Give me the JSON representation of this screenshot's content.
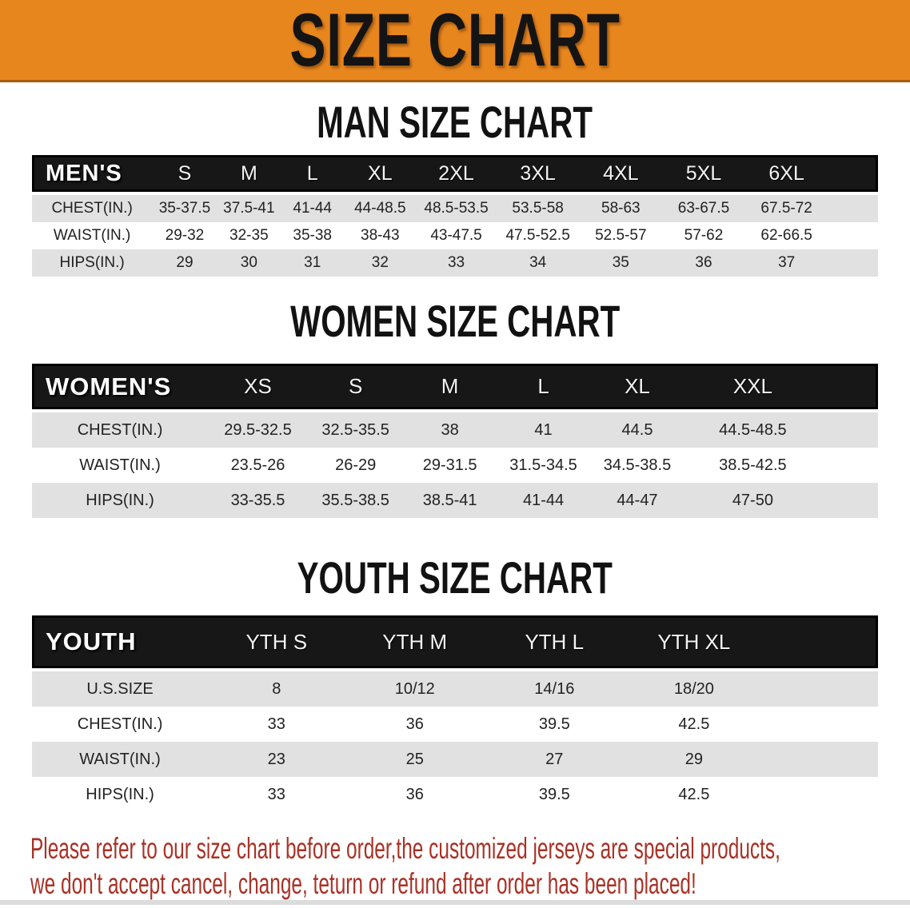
{
  "banner": {
    "title": "SIZE CHART"
  },
  "colors": {
    "banner_bg": "#E8861E",
    "table_header_bg": "#171717",
    "row_stripe": "#E1E1E1",
    "disclaimer_text": "#A93226"
  },
  "sections": [
    {
      "heading": "MAN SIZE CHART",
      "table": {
        "label": "MEN'S",
        "columns": [
          "S",
          "M",
          "L",
          "XL",
          "2XL",
          "3XL",
          "4XL",
          "5XL",
          "6XL"
        ],
        "rows": [
          {
            "label": "CHEST(IN.)",
            "values": [
              "35-37.5",
              "37.5-41",
              "41-44",
              "44-48.5",
              "48.5-53.5",
              "53.5-58",
              "58-63",
              "63-67.5",
              "67.5-72"
            ]
          },
          {
            "label": "WAIST(IN.)",
            "values": [
              "29-32",
              "32-35",
              "35-38",
              "38-43",
              "43-47.5",
              "47.5-52.5",
              "52.5-57",
              "57-62",
              "62-66.5"
            ]
          },
          {
            "label": "HIPS(IN.)",
            "values": [
              "29",
              "30",
              "31",
              "32",
              "33",
              "34",
              "35",
              "36",
              "37"
            ]
          }
        ]
      }
    },
    {
      "heading": "WOMEN SIZE CHART",
      "table": {
        "label": "WOMEN'S",
        "columns": [
          "XS",
          "S",
          "M",
          "L",
          "XL",
          "XXL"
        ],
        "rows": [
          {
            "label": "CHEST(IN.)",
            "values": [
              "29.5-32.5",
              "32.5-35.5",
              "38",
              "41",
              "44.5",
              "44.5-48.5"
            ]
          },
          {
            "label": "WAIST(IN.)",
            "values": [
              "23.5-26",
              "26-29",
              "29-31.5",
              "31.5-34.5",
              "34.5-38.5",
              "38.5-42.5"
            ]
          },
          {
            "label": "HIPS(IN.)",
            "values": [
              "33-35.5",
              "35.5-38.5",
              "38.5-41",
              "41-44",
              "44-47",
              "47-50"
            ]
          }
        ]
      }
    },
    {
      "heading": "YOUTH SIZE CHART",
      "table": {
        "label": "YOUTH",
        "columns": [
          "YTH S",
          "YTH M",
          "YTH L",
          "YTH XL"
        ],
        "rows": [
          {
            "label": "U.S.SIZE",
            "values": [
              "8",
              "10/12",
              "14/16",
              "18/20"
            ]
          },
          {
            "label": "CHEST(IN.)",
            "values": [
              "33",
              "36",
              "39.5",
              "42.5"
            ]
          },
          {
            "label": "WAIST(IN.)",
            "values": [
              "23",
              "25",
              "27",
              "29"
            ]
          },
          {
            "label": "HIPS(IN.)",
            "values": [
              "33",
              "36",
              "39.5",
              "42.5"
            ]
          }
        ]
      }
    }
  ],
  "disclaimer": {
    "line1": "Please refer to our size chart before order,the customized jerseys are special products,",
    "line2": "we don't accept cancel, change, teturn or refund after order has been placed!"
  }
}
